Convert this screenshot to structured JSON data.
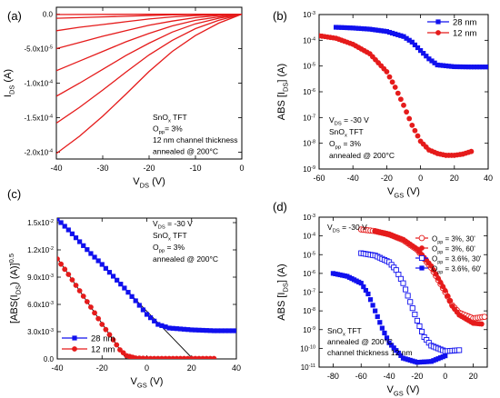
{
  "panels": [
    {
      "id": "a",
      "tag": "(a)",
      "type": "line",
      "xlabel": "V_DS (V)",
      "ylabel": "I_DS (A)",
      "xlim": [
        -40,
        0
      ],
      "ylim": [
        -0.00021,
        1e-05
      ],
      "xticks": [
        -40,
        -30,
        -20,
        -10,
        0
      ],
      "xtick_labels": [
        "-40",
        "-30",
        "-20",
        "-10",
        "0"
      ],
      "yticks": [
        0,
        -5e-05,
        -0.0001,
        -0.00015,
        -0.0002
      ],
      "ytick_labels": [
        "0.0",
        "-5.0x10^-5",
        "-1.0x10^-4",
        "-1.5x10^-4",
        "-2.0x10^-4"
      ],
      "annotations": [
        "SnO_x TFT",
        "O_pp= 3%",
        "12 nm channel thickness",
        "annealed @ 200°C"
      ],
      "series": [
        {
          "values": [
            [
              -40,
              -0.000202
            ],
            [
              -35,
              -0.000177
            ],
            [
              -30,
              -0.000148
            ],
            [
              -25,
              -0.000116
            ],
            [
              -20,
              -8.3e-05
            ],
            [
              -15,
              -5.4e-05
            ],
            [
              -10,
              -3.1e-05
            ],
            [
              -5,
              -1.3e-05
            ],
            [
              0,
              0
            ]
          ]
        },
        {
          "values": [
            [
              -40,
              -0.000158
            ],
            [
              -35,
              -0.000135
            ],
            [
              -30,
              -0.00011
            ],
            [
              -25,
              -8.4e-05
            ],
            [
              -20,
              -5.9e-05
            ],
            [
              -15,
              -3.8e-05
            ],
            [
              -10,
              -2.1e-05
            ],
            [
              -5,
              -9e-06
            ],
            [
              0,
              0
            ]
          ]
        },
        {
          "values": [
            [
              -40,
              -0.000119
            ],
            [
              -35,
              -0.0001
            ],
            [
              -30,
              -8e-05
            ],
            [
              -25,
              -6e-05
            ],
            [
              -20,
              -4.2e-05
            ],
            [
              -15,
              -2.6e-05
            ],
            [
              -10,
              -1.4e-05
            ],
            [
              -5,
              -6e-06
            ],
            [
              0,
              0
            ]
          ]
        },
        {
          "values": [
            [
              -40,
              -8.2e-05
            ],
            [
              -35,
              -6.8e-05
            ],
            [
              -30,
              -5.4e-05
            ],
            [
              -25,
              -4e-05
            ],
            [
              -20,
              -2.8e-05
            ],
            [
              -15,
              -1.7e-05
            ],
            [
              -10,
              -9e-06
            ],
            [
              -5,
              -4e-06
            ],
            [
              0,
              0
            ]
          ]
        },
        {
          "values": [
            [
              -40,
              -5e-05
            ],
            [
              -35,
              -4.1e-05
            ],
            [
              -30,
              -3.2e-05
            ],
            [
              -25,
              -2.4e-05
            ],
            [
              -20,
              -1.6e-05
            ],
            [
              -15,
              -1e-05
            ],
            [
              -10,
              -5e-06
            ],
            [
              -5,
              -2e-06
            ],
            [
              0,
              0
            ]
          ]
        },
        {
          "values": [
            [
              -40,
              -2.4e-05
            ],
            [
              -35,
              -1.9e-05
            ],
            [
              -30,
              -1.5e-05
            ],
            [
              -25,
              -1.1e-05
            ],
            [
              -20,
              -7e-06
            ],
            [
              -15,
              -4e-06
            ],
            [
              -10,
              -2e-06
            ],
            [
              -5,
              -1e-06
            ],
            [
              0,
              0
            ]
          ]
        },
        {
          "values": [
            [
              -40,
              -6e-06
            ],
            [
              -35,
              -5e-06
            ],
            [
              -30,
              -4e-06
            ],
            [
              -25,
              -3e-06
            ],
            [
              -20,
              -2e-06
            ],
            [
              -15,
              -1e-06
            ],
            [
              -10,
              -5e-07
            ],
            [
              -5,
              -2e-07
            ],
            [
              0,
              0
            ]
          ]
        },
        {
          "values": [
            [
              -40,
              -5e-07
            ],
            [
              -20,
              -2e-07
            ],
            [
              0,
              0
            ]
          ]
        }
      ]
    },
    {
      "id": "b",
      "tag": "(b)",
      "type": "scatter",
      "scale": "log",
      "xlabel": "V_GS (V)",
      "ylabel": "ABS [I_DS] (A)",
      "xlim": [
        -60,
        40
      ],
      "ylim_exp": [
        -9,
        -3
      ],
      "xticks": [
        -60,
        -40,
        -20,
        0,
        20,
        40
      ],
      "xtick_labels": [
        "-60",
        "-40",
        "-20",
        "0",
        "20",
        "40"
      ],
      "ytick_exps": [
        -9,
        -8,
        -7,
        -6,
        -5,
        -4,
        -3
      ],
      "ytick_labels": [
        "10^-9",
        "10^-8",
        "10^-7",
        "10^-6",
        "10^-5",
        "10^-4",
        "10^-3"
      ],
      "legend_position": "top-right",
      "annotations": [
        "V_DS = -30 V",
        "SnO_x TFT",
        "O_pp = 3%",
        "annealed @ 200°C"
      ],
      "series": [
        {
          "name": "28 nm",
          "color": "#1010ee",
          "marker": "square",
          "points": [
            [
              -50,
              0.00032
            ],
            [
              -40,
              0.0003
            ],
            [
              -30,
              0.00027
            ],
            [
              -20,
              0.00022
            ],
            [
              -10,
              0.00014
            ],
            [
              -5,
              8.5e-05
            ],
            [
              0,
              4e-05
            ],
            [
              5,
              1.9e-05
            ],
            [
              10,
              1.1e-05
            ],
            [
              20,
              9.4e-06
            ],
            [
              30,
              9.2e-06
            ],
            [
              40,
              9.2e-06
            ]
          ]
        },
        {
          "name": "12 nm",
          "color": "#e51b1b",
          "marker": "circle",
          "points": [
            [
              -60,
              0.00015
            ],
            [
              -50,
              0.00012
            ],
            [
              -40,
              7e-05
            ],
            [
              -30,
              3e-05
            ],
            [
              -20,
              6e-06
            ],
            [
              -15,
              1.5e-06
            ],
            [
              -10,
              3e-07
            ],
            [
              -5,
              5e-08
            ],
            [
              0,
              1.2e-08
            ],
            [
              5,
              5.5e-09
            ],
            [
              10,
              4e-09
            ],
            [
              15,
              3.4e-09
            ],
            [
              20,
              3.4e-09
            ],
            [
              25,
              3.8e-09
            ],
            [
              30,
              4.8e-09
            ]
          ]
        }
      ]
    },
    {
      "id": "c",
      "tag": "(c)",
      "type": "scatter",
      "xlabel": "V_GS (V)",
      "ylabel": "[ABS(I_DS) (A)]^0.5",
      "xlim": [
        -40,
        40
      ],
      "ylim": [
        0,
        0.0155
      ],
      "xticks": [
        -40,
        -20,
        0,
        20,
        40
      ],
      "xtick_labels": [
        "-40",
        "-20",
        "0",
        "20",
        "40"
      ],
      "yticks": [
        0,
        0.003,
        0.006,
        0.009,
        0.012,
        0.015
      ],
      "ytick_labels": [
        "0.0",
        "3.0x10^-3",
        "6.0x10^-3",
        "9.0x10^-3",
        "1.2x10^-2",
        "1.5x10^-2"
      ],
      "legend_position": "bottom-left",
      "annotations": [
        "V_DS = -30 V",
        "SnO_x TFT",
        "O_pp = 3%",
        "annealed @ 200°C"
      ],
      "series": [
        {
          "name": "28 nm",
          "color": "#1010ee",
          "marker": "square",
          "points": [
            [
              -40,
              0.0154
            ],
            [
              -35,
              0.0142
            ],
            [
              -30,
              0.0129
            ],
            [
              -25,
              0.0116
            ],
            [
              -20,
              0.0104
            ],
            [
              -15,
              0.0091
            ],
            [
              -10,
              0.0078
            ],
            [
              -5,
              0.0064
            ],
            [
              0,
              0.0049
            ],
            [
              5,
              0.0038
            ],
            [
              10,
              0.0034
            ],
            [
              20,
              0.0032
            ],
            [
              30,
              0.0031
            ],
            [
              40,
              0.0031
            ]
          ]
        },
        {
          "name": "12 nm",
          "color": "#e51b1b",
          "marker": "circle",
          "points": [
            [
              -40,
              0.011
            ],
            [
              -35,
              0.0093
            ],
            [
              -30,
              0.0075
            ],
            [
              -25,
              0.0057
            ],
            [
              -20,
              0.0038
            ],
            [
              -15,
              0.0021
            ],
            [
              -12,
              0.001
            ],
            [
              -9,
              0.00035
            ],
            [
              -5,
              0.0001
            ],
            [
              0,
              5e-05
            ],
            [
              10,
              5e-05
            ],
            [
              20,
              5e-05
            ],
            [
              30,
              5e-05
            ]
          ]
        }
      ]
    },
    {
      "id": "d",
      "tag": "(d)",
      "type": "scatter",
      "scale": "log",
      "xlabel": "V_GS (V)",
      "ylabel": "ABS [I_DS] (A)",
      "xlim": [
        -90,
        30
      ],
      "ylim_exp": [
        -11,
        -3
      ],
      "xticks": [
        -80,
        -60,
        -40,
        -20,
        0,
        20
      ],
      "xtick_labels": [
        "-80",
        "-60",
        "-40",
        "-20",
        "0",
        "20"
      ],
      "ytick_exps": [
        -11,
        -10,
        -9,
        -8,
        -7,
        -6,
        -5,
        -4,
        -3
      ],
      "ytick_labels": [
        "10^-11",
        "10^-10",
        "10^-9",
        "10^-8",
        "10^-7",
        "10^-6",
        "10^-5",
        "10^-4",
        "10^-3"
      ],
      "legend_position": "top-right",
      "annotations": [
        "V_DS = -30 V",
        "SnO_x TFT",
        "annealed @ 200°C",
        "channel thickness 12 nm"
      ],
      "series": [
        {
          "name": "O_pp = 3%, 30'",
          "color": "#e51b1b",
          "marker": "circle-open",
          "points": [
            [
              -60,
              0.00022
            ],
            [
              -50,
              0.00018
            ],
            [
              -40,
              0.00012
            ],
            [
              -30,
              6e-05
            ],
            [
              -20,
              1.8e-05
            ],
            [
              -10,
              2e-06
            ],
            [
              0,
              1e-07
            ],
            [
              5,
              2e-08
            ],
            [
              10,
              8e-09
            ],
            [
              20,
              4e-09
            ],
            [
              28,
              4.8e-09
            ]
          ]
        },
        {
          "name": "O_pp = 3%, 60'",
          "color": "#e51b1b",
          "marker": "circle",
          "points": [
            [
              -50,
              0.00018
            ],
            [
              -40,
              0.00012
            ],
            [
              -30,
              6.5e-05
            ],
            [
              -20,
              2e-05
            ],
            [
              -10,
              2.5e-06
            ],
            [
              0,
              1.2e-07
            ],
            [
              5,
              1.8e-08
            ],
            [
              10,
              6e-09
            ],
            [
              20,
              2.2e-09
            ],
            [
              26,
              2e-09
            ]
          ]
        },
        {
          "name": "O_pp = 3.6%, 30'",
          "color": "#1010ee",
          "marker": "square-open",
          "points": [
            [
              -60,
              1.2e-05
            ],
            [
              -50,
              9e-06
            ],
            [
              -40,
              4e-06
            ],
            [
              -35,
              1.5e-06
            ],
            [
              -30,
              3e-07
            ],
            [
              -25,
              3e-08
            ],
            [
              -20,
              3e-09
            ],
            [
              -15,
              4e-10
            ],
            [
              -10,
              1.4e-10
            ],
            [
              0,
              7e-11
            ],
            [
              10,
              8e-11
            ]
          ]
        },
        {
          "name": "O_pp = 3.6%, 60'",
          "color": "#1010ee",
          "marker": "square",
          "points": [
            [
              -80,
              1e-06
            ],
            [
              -70,
              7e-07
            ],
            [
              -60,
              3e-07
            ],
            [
              -55,
              8e-08
            ],
            [
              -50,
              1e-08
            ],
            [
              -45,
              1.2e-09
            ],
            [
              -40,
              2e-10
            ],
            [
              -30,
              3e-11
            ],
            [
              -20,
              1.8e-11
            ],
            [
              -10,
              2e-11
            ],
            [
              0,
              4e-11
            ]
          ]
        }
      ]
    }
  ]
}
